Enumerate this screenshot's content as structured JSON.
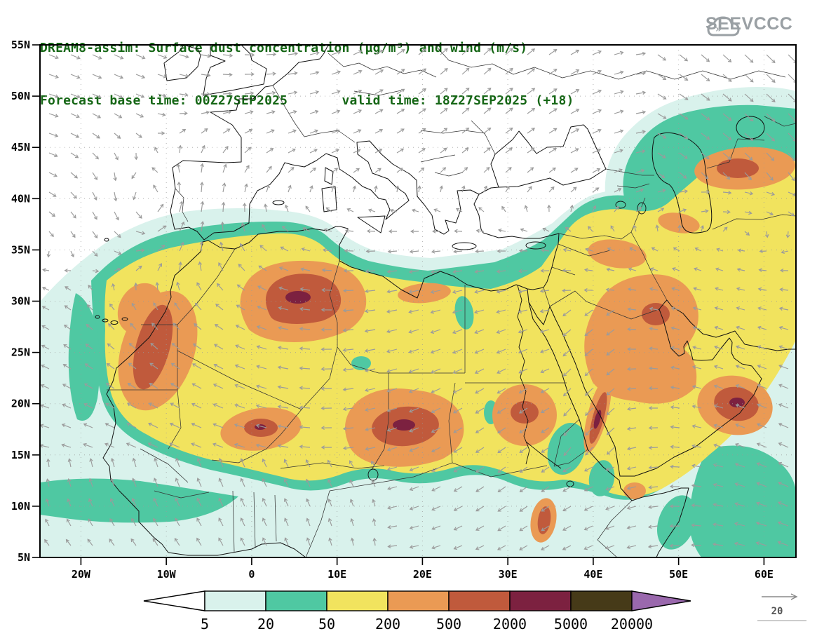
{
  "header": {
    "title_line1": "DREAM8-assim: Surface dust concentration (µg/m³) and wind (m/s)",
    "title_line2": "Forecast base time: 00Z27SEP2025       valid time: 18Z27SEP2025 (+18)",
    "title_color": "#156615"
  },
  "logo": {
    "text": "SEEVCCC",
    "color": "#9aa0a4"
  },
  "chart_data": {
    "type": "heatmap",
    "field": "surface dust concentration",
    "units": "µg/m³",
    "levels": [
      "5",
      "20",
      "50",
      "200",
      "500",
      "2000",
      "5000",
      "20000"
    ],
    "level_colors": [
      "#ffffff",
      "#d9f2ec",
      "#4fc8a2",
      "#f1e35e",
      "#ea9a54",
      "#c05a3c",
      "#7c2140",
      "#463a18",
      "#9a68ad"
    ],
    "lat_ticks": [
      "55N",
      "50N",
      "45N",
      "40N",
      "35N",
      "30N",
      "25N",
      "20N",
      "15N",
      "10N",
      "5N"
    ],
    "lon_ticks": [
      "20W",
      "10W",
      "0",
      "10E",
      "20E",
      "30E",
      "40E",
      "50E",
      "60E"
    ],
    "wind_reference_ms": "20",
    "legend_position": "bottom"
  }
}
